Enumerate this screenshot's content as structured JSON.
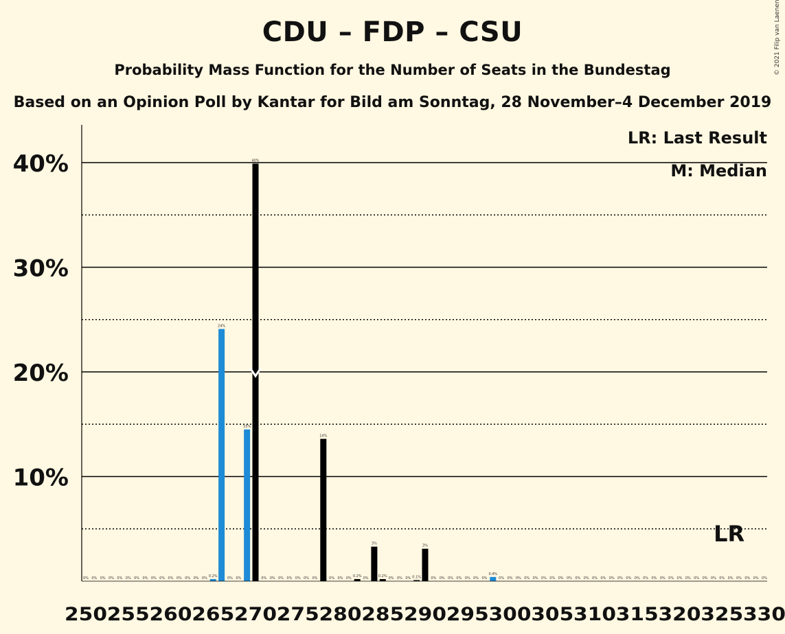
{
  "header": {
    "title": "CDU – FDP – CSU",
    "subtitle": "Probability Mass Function for the Number of Seats in the Bundestag",
    "source": "Based on an Opinion Poll by Kantar for Bild am Sonntag, 28 November–4 December 2019",
    "copyright": "© 2021 Filip van Laenen"
  },
  "legend": {
    "lr": "LR: Last Result",
    "median": "M: Median",
    "placement": "top-right"
  },
  "colors": {
    "background": "#FFF8E2",
    "poll_bar": "#1D8BD6",
    "pmf_bar": "#000000",
    "median_marker": "#FFFFFF"
  },
  "chart_data": {
    "type": "bar",
    "xlabel": "",
    "ylabel": "",
    "ylim": [
      0,
      40
    ],
    "yticks_major": [
      "10%",
      "20%",
      "30%",
      "40%"
    ],
    "x_tick_labels": [
      "250",
      "255",
      "260",
      "265",
      "270",
      "275",
      "280",
      "285",
      "290",
      "295",
      "300",
      "305",
      "310",
      "315",
      "320",
      "325",
      "330"
    ],
    "x_range": [
      250,
      330
    ],
    "median_seat": 270,
    "last_result_label": "LR",
    "last_result_seat": 326,
    "grid": "solid at 10% steps, dotted at 5% steps",
    "series": [
      {
        "seats": [
          250,
          251,
          252,
          253,
          254,
          255,
          256,
          257,
          258,
          259,
          260,
          261,
          262,
          263,
          264,
          265,
          266,
          267,
          268,
          269,
          270,
          271,
          272,
          273,
          274,
          275,
          276,
          277,
          278,
          279,
          280,
          281,
          282,
          283,
          284,
          285,
          286,
          287,
          288,
          289,
          290,
          291,
          292,
          293,
          294,
          295,
          296,
          297,
          298,
          299,
          300,
          301,
          302,
          303,
          304,
          305,
          306,
          307,
          308,
          309,
          310,
          311,
          312,
          313,
          314,
          315,
          316,
          317,
          318,
          319,
          320,
          321,
          322,
          323,
          324,
          325,
          326,
          327,
          328,
          329,
          330
        ],
        "values": [
          0,
          0,
          0,
          0,
          0,
          0,
          0,
          0,
          0,
          0,
          0,
          0,
          0,
          0,
          0,
          0.2,
          24.1,
          0,
          0,
          14.5,
          39.9,
          0,
          0,
          0,
          0,
          0,
          0,
          0,
          13.6,
          0,
          0,
          0,
          0.2,
          0,
          3.3,
          0.2,
          0,
          0,
          0,
          0.1,
          3.1,
          0,
          0,
          0,
          0,
          0,
          0,
          0,
          0.4,
          0,
          0,
          0,
          0,
          0,
          0,
          0,
          0,
          0,
          0,
          0,
          0,
          0,
          0,
          0,
          0,
          0,
          0,
          0,
          0,
          0,
          0,
          0,
          0,
          0,
          0,
          0,
          0,
          0,
          0,
          0,
          0
        ],
        "labels": [
          "0%",
          "0%",
          "0%",
          "0%",
          "0%",
          "0%",
          "0%",
          "0%",
          "0%",
          "0%",
          "0%",
          "0%",
          "0%",
          "0%",
          "0%",
          "0.2%",
          "24%",
          "0%",
          "0%",
          "15%",
          "40%",
          "0%",
          "0%",
          "0%",
          "0%",
          "0%",
          "0%",
          "0%",
          "14%",
          "0%",
          "0%",
          "0%",
          "0.2%",
          "0%",
          "3%",
          "0.2%",
          "0%",
          "0%",
          "0%",
          "0.1%",
          "3%",
          "0%",
          "0%",
          "0%",
          "0%",
          "0%",
          "0%",
          "0%",
          "0.4%",
          "0%",
          "0%",
          "0%",
          "0%",
          "0%",
          "0%",
          "0%",
          "0%",
          "0%",
          "0%",
          "0%",
          "0%",
          "0%",
          "0%",
          "0%",
          "0%",
          "0%",
          "0%",
          "0%",
          "0%",
          "0%",
          "0%",
          "0%",
          "0%",
          "0%",
          "0%",
          "0%",
          "0%",
          "0%",
          "0%",
          "0%",
          "0%"
        ],
        "colors": [
          "black",
          "black",
          "black",
          "black",
          "black",
          "black",
          "black",
          "black",
          "black",
          "black",
          "black",
          "black",
          "black",
          "black",
          "black",
          "blue",
          "blue",
          "black",
          "black",
          "blue",
          "black",
          "black",
          "black",
          "black",
          "black",
          "black",
          "black",
          "black",
          "black",
          "black",
          "black",
          "black",
          "black",
          "black",
          "black",
          "black",
          "black",
          "black",
          "black",
          "black",
          "black",
          "black",
          "black",
          "black",
          "black",
          "black",
          "black",
          "black",
          "blue",
          "black",
          "black",
          "black",
          "black",
          "black",
          "black",
          "black",
          "black",
          "black",
          "black",
          "black",
          "black",
          "black",
          "black",
          "black",
          "black",
          "black",
          "black",
          "black",
          "black",
          "black",
          "black",
          "black",
          "black",
          "black",
          "black",
          "black",
          "black",
          "black",
          "black",
          "black",
          "black"
        ]
      }
    ]
  }
}
